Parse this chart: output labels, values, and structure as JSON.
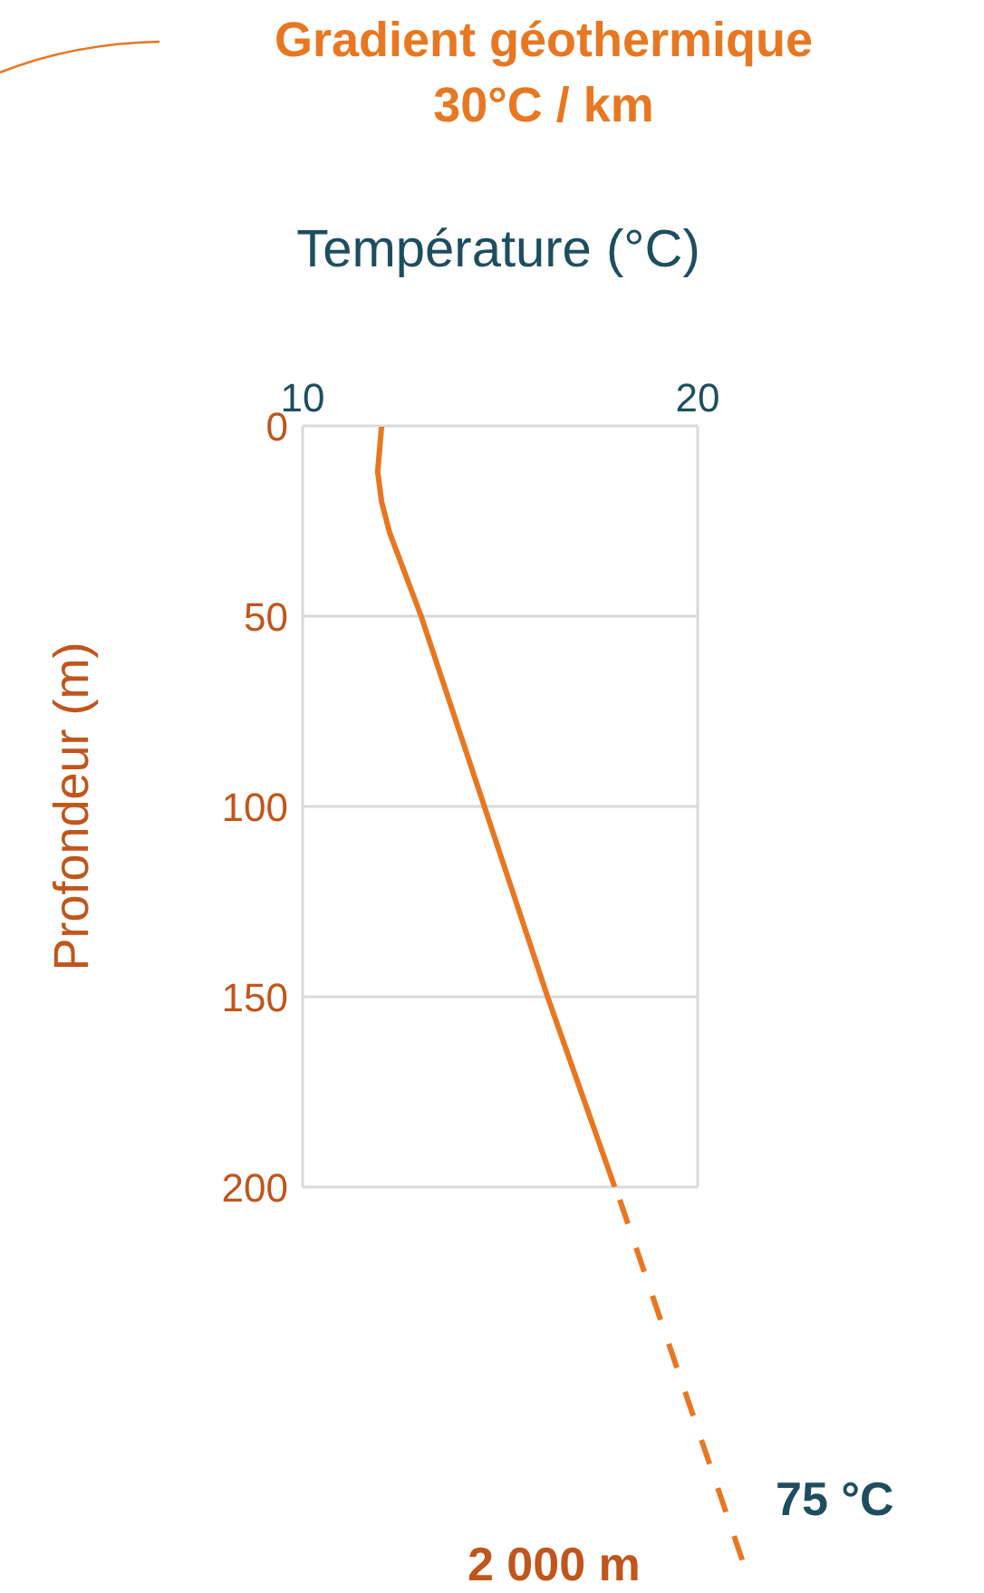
{
  "chart_data": {
    "type": "line",
    "title": "Gradient géothermique",
    "subtitle": "30°C / km",
    "xlabel": "Température (°C)",
    "ylabel": "Profondeur (m)",
    "series": [
      {
        "color": "#e87722",
        "x": [
          12.0,
          11.9,
          12.0,
          12.2,
          13.0,
          14.6,
          16.2,
          17.9
        ],
        "values": [
          0,
          12,
          20,
          28,
          50,
          100,
          150,
          200
        ]
      }
    ],
    "xlim": [
      10,
      20
    ],
    "xticks": [
      10,
      20
    ],
    "ylim": [
      200,
      0
    ],
    "yticks": [
      0,
      50,
      100,
      150,
      200
    ],
    "grid": true,
    "marker": "none",
    "line_style": "solid",
    "annotations": [
      "75 °C",
      "2 000 m"
    ]
  }
}
